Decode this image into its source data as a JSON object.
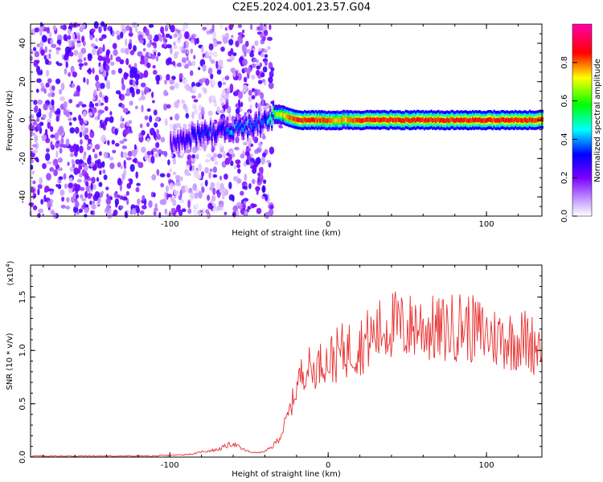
{
  "title": "C2E5.2024.001.23.57.G04",
  "chart_data": [
    {
      "type": "heatmap",
      "xlabel": "Height of straight line (km)",
      "ylabel": "Frequency (Hz)",
      "xlim": [
        -188,
        135
      ],
      "ylim": [
        -50,
        50
      ],
      "x_ticks": [
        -100,
        0,
        100
      ],
      "y_ticks": [
        -40,
        -20,
        0,
        20,
        40
      ],
      "colorbar": {
        "label": "Normalized spectral amplitude",
        "ticks": [
          "0.0",
          "0.2",
          "0.4",
          "0.6",
          "0.8"
        ],
        "range": [
          0,
          1
        ],
        "colors": [
          "#ffffff",
          "#8000ff",
          "#0000ff",
          "#00ffff",
          "#00ff00",
          "#ffff00",
          "#ff0000",
          "#ff00ff"
        ]
      },
      "signal_track": {
        "description_free_values": true,
        "x": [
          -100,
          -90,
          -80,
          -70,
          -60,
          -50,
          -40,
          -35,
          -30,
          -25,
          -20,
          -10,
          0,
          10,
          20,
          40,
          60,
          80,
          100,
          120,
          135
        ],
        "freq": [
          -12,
          -9,
          -7,
          -6,
          -5,
          -3,
          -1,
          3,
          3,
          1,
          0,
          0,
          0,
          0,
          0,
          0,
          0,
          0,
          0,
          0,
          0
        ],
        "peak_amplitude": [
          0.25,
          0.3,
          0.35,
          0.3,
          0.4,
          0.35,
          0.35,
          0.6,
          0.7,
          0.8,
          0.85,
          0.85,
          0.8,
          0.75,
          0.85,
          0.85,
          0.85,
          0.85,
          0.85,
          0.85,
          0.85
        ]
      }
    },
    {
      "type": "line",
      "xlabel": "Height of straight line (km)",
      "ylabel": "SNR (10 * v/v)",
      "y_multiplier": "(x10",
      "y_multiplier_exp": "4",
      "xlim": [
        -188,
        135
      ],
      "ylim": [
        0,
        1.8
      ],
      "x_ticks": [
        -100,
        0,
        100
      ],
      "y_ticks": [
        0.0,
        0.5,
        1.0,
        1.5
      ],
      "y_tick_labels": [
        "0.0",
        "0.5",
        "1.0",
        "1.5"
      ],
      "color": "#e83030",
      "series": [
        {
          "x": [
            -188,
            -170,
            -150,
            -130,
            -110,
            -95,
            -85,
            -80,
            -70,
            -65,
            -60,
            -55,
            -50,
            -45,
            -40,
            -35,
            -30,
            -27,
            -24,
            -21,
            -18,
            -15,
            -12,
            -9,
            -6,
            -3,
            0,
            5,
            10,
            15,
            20,
            25,
            30,
            35,
            40,
            45,
            50,
            55,
            60,
            65,
            70,
            75,
            80,
            85,
            90,
            95,
            100,
            105,
            110,
            115,
            120,
            125,
            130,
            135
          ],
          "y": [
            0.01,
            0.01,
            0.01,
            0.01,
            0.01,
            0.02,
            0.03,
            0.05,
            0.07,
            0.1,
            0.13,
            0.08,
            0.05,
            0.04,
            0.05,
            0.1,
            0.2,
            0.32,
            0.45,
            0.6,
            0.75,
            0.82,
            0.85,
            0.8,
            0.88,
            0.9,
            0.9,
            0.95,
            1.0,
            1.02,
            1.05,
            1.1,
            1.15,
            1.2,
            1.25,
            1.22,
            1.2,
            1.25,
            1.22,
            1.2,
            1.18,
            1.2,
            1.22,
            1.25,
            1.2,
            1.18,
            1.15,
            1.12,
            1.12,
            1.1,
            1.1,
            1.1,
            1.05,
            1.1
          ]
        }
      ]
    }
  ]
}
